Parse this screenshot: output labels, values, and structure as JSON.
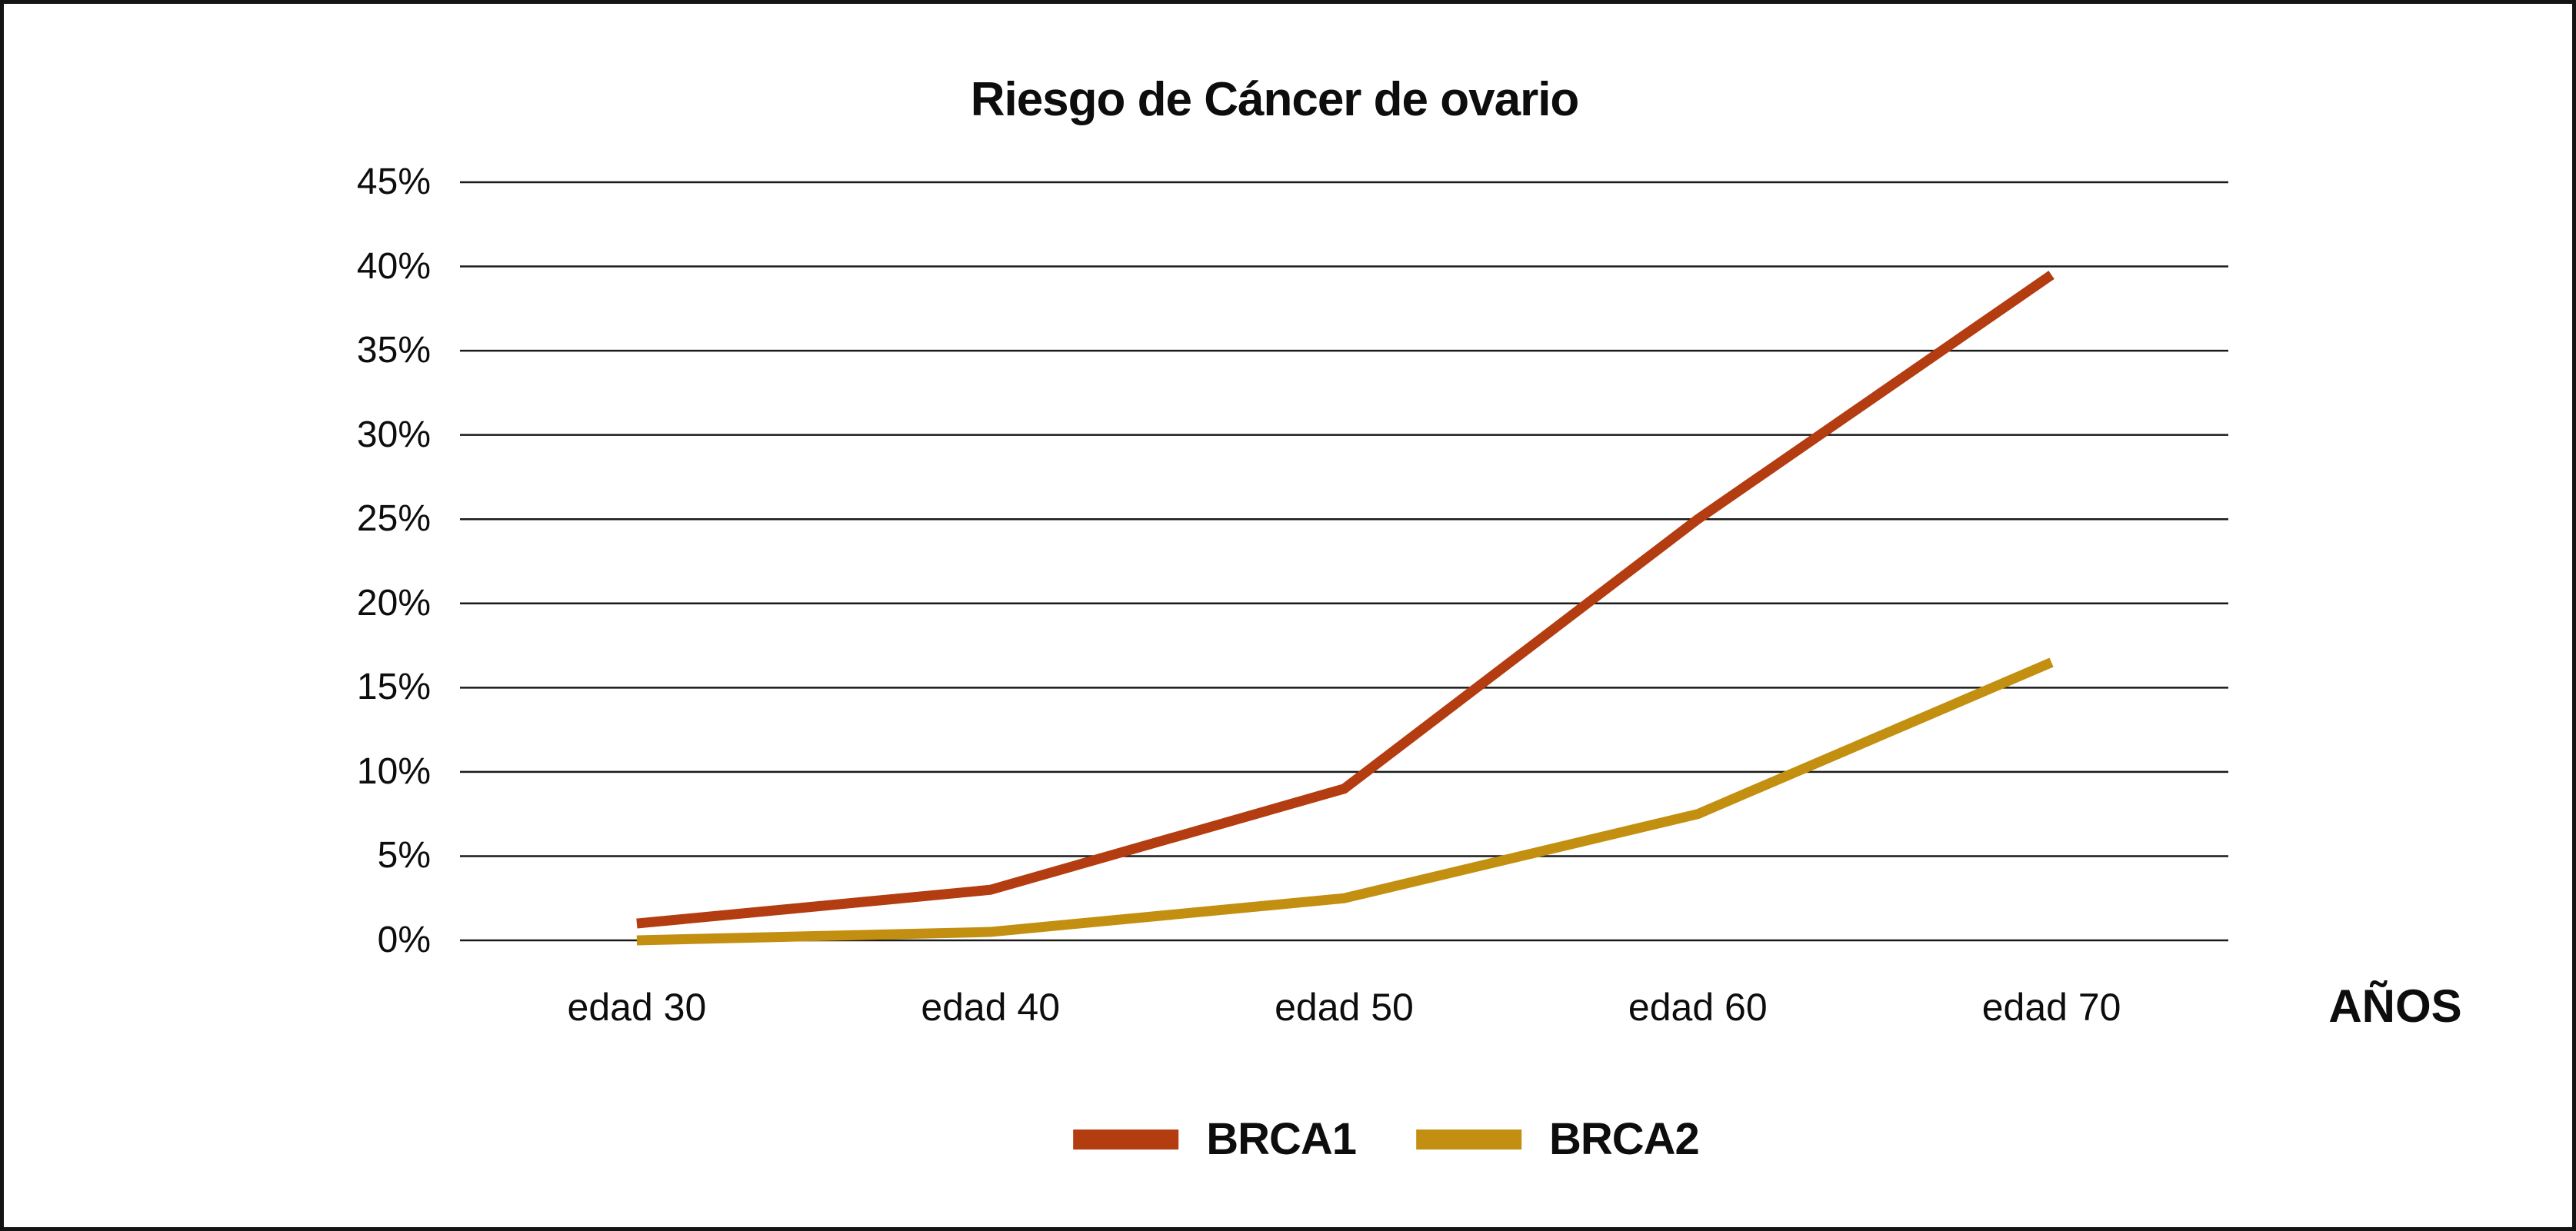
{
  "chart_data": {
    "type": "line",
    "title": "Riesgo de Cáncer de ovario",
    "xlabel": "AÑOS",
    "ylabel": "",
    "categories": [
      "edad 30",
      "edad 40",
      "edad 50",
      "edad 60",
      "edad 70"
    ],
    "series": [
      {
        "name": "BRCA1",
        "color": "#B33C10",
        "values": [
          1,
          3,
          9,
          25,
          39.5
        ]
      },
      {
        "name": "BRCA2",
        "color": "#C28F10",
        "values": [
          0,
          0.5,
          2.5,
          7.5,
          16.5
        ]
      }
    ],
    "ylim": [
      0,
      45
    ],
    "y_step": 5,
    "y_tick_labels": [
      "0%",
      "5%",
      "10%",
      "15%",
      "20%",
      "25%",
      "30%",
      "35%",
      "40%",
      "45%"
    ],
    "grid": "horizontal",
    "gridline_color": "#1a1a1a",
    "background_color": "#ffffff",
    "legend_position": "bottom"
  }
}
